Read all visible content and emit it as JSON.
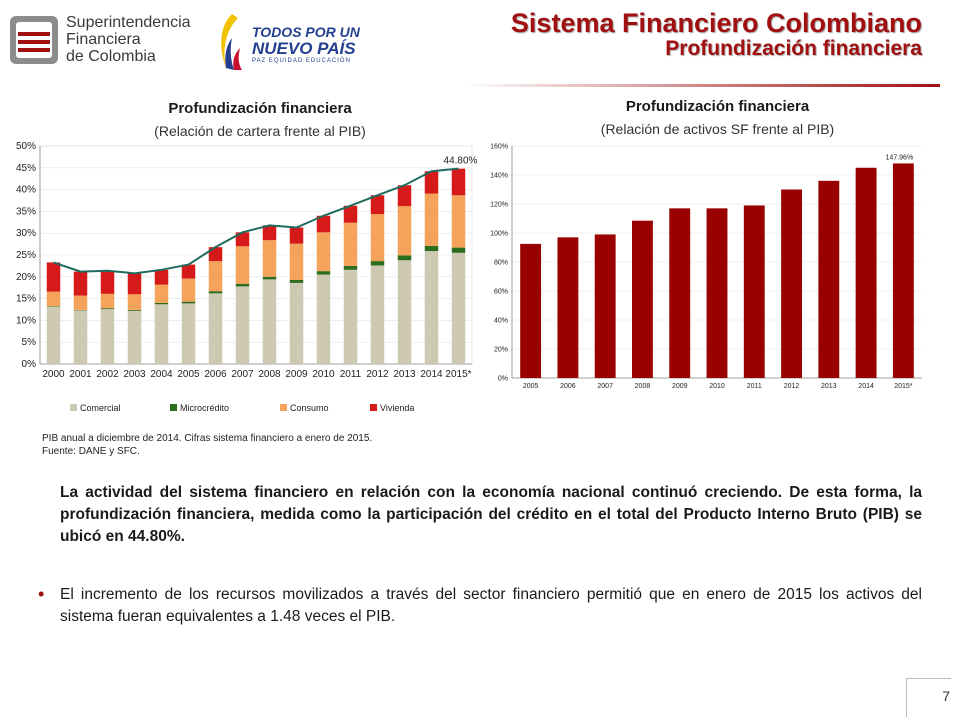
{
  "header": {
    "logo_sfc": [
      "Superintendencia",
      "Financiera",
      "de Colombia"
    ],
    "logo_gov": [
      "TODOS POR UN",
      "NUEVO PAÍS"
    ],
    "logo_gov_tagline": "PAZ EQUIDAD EDUCACIÓN",
    "title": "Sistema Financiero Colombiano",
    "subtitle": "Profundización financiera"
  },
  "colors": {
    "brand_red": "#a01010",
    "line": "#1f6b5e"
  },
  "chart_data": [
    {
      "type": "bar",
      "stacked": true,
      "title": "Profundización financiera",
      "subtitle": "(Relación de cartera frente al PIB)",
      "categories": [
        "2000",
        "2001",
        "2002",
        "2003",
        "2004",
        "2005",
        "2006",
        "2007",
        "2008",
        "2009",
        "2010",
        "2011",
        "2012",
        "2013",
        "2014",
        "2015*"
      ],
      "ylim": [
        0,
        50
      ],
      "yticks": [
        "0%",
        "5%",
        "10%",
        "15%",
        "20%",
        "25%",
        "30%",
        "35%",
        "40%",
        "45%",
        "50%"
      ],
      "series": [
        {
          "name": "Comercial",
          "color": "#cdc9b3",
          "values": [
            13.2,
            12.3,
            12.6,
            12.2,
            13.7,
            13.9,
            16.2,
            17.8,
            19.4,
            18.6,
            20.5,
            21.6,
            22.6,
            23.8,
            25.9,
            25.5
          ]
        },
        {
          "name": "Microcrédito",
          "color": "#2d6e1e",
          "values": [
            0.1,
            0.1,
            0.2,
            0.2,
            0.3,
            0.4,
            0.5,
            0.6,
            0.6,
            0.7,
            0.8,
            0.9,
            1.0,
            1.1,
            1.2,
            1.2
          ]
        },
        {
          "name": "Consumo",
          "color": "#f5a35a",
          "values": [
            3.3,
            3.3,
            3.3,
            3.6,
            4.2,
            5.3,
            6.9,
            8.6,
            8.4,
            8.3,
            8.9,
            9.9,
            10.8,
            11.3,
            12.0,
            12.0
          ]
        },
        {
          "name": "Vivienda",
          "color": "#d61a1a",
          "values": [
            6.7,
            5.5,
            5.3,
            4.8,
            3.4,
            3.2,
            3.2,
            3.2,
            3.4,
            3.7,
            3.8,
            3.9,
            4.3,
            4.8,
            5.1,
            6.1
          ]
        }
      ],
      "total_line": [
        23.3,
        21.2,
        21.4,
        20.8,
        21.6,
        22.8,
        26.8,
        30.2,
        31.8,
        31.3,
        34.0,
        36.3,
        38.7,
        41.0,
        44.2,
        44.8
      ],
      "data_labels": [
        {
          "index": 15,
          "text": "44.80%"
        }
      ],
      "legend_position": "bottom"
    },
    {
      "type": "bar",
      "title": "Profundización financiera",
      "subtitle": "(Relación de activos SF frente al PIB)",
      "categories": [
        "2005",
        "2006",
        "2007",
        "2008",
        "2009",
        "2010",
        "2011",
        "2012",
        "2013",
        "2014",
        "2015*"
      ],
      "values": [
        92.5,
        97,
        99,
        108.5,
        117,
        117,
        119,
        130,
        136,
        145,
        147.96
      ],
      "color": "#990000",
      "ylim": [
        0,
        160
      ],
      "yticks": [
        "0%",
        "20%",
        "40%",
        "60%",
        "80%",
        "100%",
        "120%",
        "140%",
        "160%"
      ],
      "data_labels": [
        {
          "index": 10,
          "text": "147.96%"
        }
      ]
    }
  ],
  "notes": [
    "PIB anual a diciembre de 2014. Cifras sistema financiero a enero de 2015.",
    "Fuente: DANE y SFC."
  ],
  "body": {
    "paragraph": "La actividad del sistema financiero en relación con la economía nacional continuó creciendo. De esta forma, la profundización financiera, medida como la participación del crédito en el total del Producto Interno Bruto (PIB) se ubicó en 44.80%.",
    "bullet_marker": "•",
    "bullet": "El incremento de los recursos movilizados a través del sector financiero permitió que en enero de 2015 los activos del sistema fueran equivalentes a 1.48 veces el PIB."
  },
  "page_number": "7"
}
